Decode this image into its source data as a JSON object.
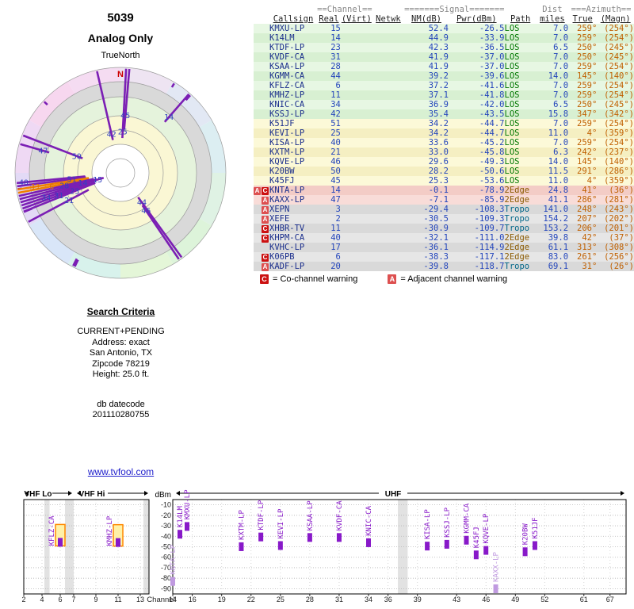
{
  "header": {
    "title": "5039",
    "subtitle": "Analog Only",
    "north_label": "TrueNorth",
    "north_marker": "N"
  },
  "table": {
    "group_headers": {
      "channel": "==Channel==",
      "signal": "=======Signal=======",
      "dist": "Dist",
      "azimuth": "===Azimuth=="
    },
    "columns": {
      "callsign": "Callsign",
      "real": "Real",
      "virt": "(Virt)",
      "netwk": "Netwk",
      "nm": "NM(dB)",
      "pwr": "Pwr(dBm)",
      "path": "Path",
      "miles": "miles",
      "az_true": "True",
      "az_magn": "(Magn)"
    }
  },
  "legend": {
    "co_symbol": "C",
    "co_text": "= Co-channel warning",
    "adj_symbol": "A",
    "adj_text": "= Adjacent channel warning"
  },
  "search": {
    "heading": "Search Criteria",
    "lines": [
      "CURRENT+PENDING",
      "Address: exact",
      "San Antonio, TX",
      "Zipcode 78219",
      "Height: 25.0 ft."
    ],
    "datecode_label": "db datecode",
    "datecode_value": "201110280755"
  },
  "link_text": "www.tvfool.com",
  "colors": {
    "bar_purple": "#8819c9",
    "bar_pending": "#c09ae0",
    "highlight_orange": "#ff8800",
    "warn_red": "#cc1111"
  },
  "chart_data": {
    "type": "bar",
    "y_axis_label": "dBm",
    "bottom_axis_label": "Channel",
    "y_ticks": [
      -10,
      -20,
      -30,
      -40,
      -50,
      -60,
      -70,
      -80,
      -90
    ],
    "vhf_channel_ticks": [
      2,
      4,
      6,
      7,
      9,
      11,
      13
    ],
    "uhf_channel_ticks": [
      14,
      16,
      19,
      22,
      25,
      28,
      31,
      34,
      36,
      39,
      43,
      46,
      49,
      52,
      61,
      67
    ],
    "band_labels": [
      "VHF Lo",
      "VHF Hi",
      "UHF"
    ],
    "stations": [
      {
        "callsign": "KMXU-LP",
        "real": 15,
        "nm_db": 52.4,
        "pwr_dbm": -26.5,
        "path": "LOS",
        "miles": 7.0,
        "az_true": 259,
        "az_magn": 254,
        "band": "green"
      },
      {
        "callsign": "K14LM",
        "real": 14,
        "nm_db": 44.9,
        "pwr_dbm": -33.9,
        "path": "LOS",
        "miles": 7.0,
        "az_true": 259,
        "az_magn": 254,
        "band": "green"
      },
      {
        "callsign": "KTDF-LP",
        "real": 23,
        "nm_db": 42.3,
        "pwr_dbm": -36.5,
        "path": "LOS",
        "miles": 6.5,
        "az_true": 250,
        "az_magn": 245,
        "band": "green"
      },
      {
        "callsign": "KVDF-CA",
        "real": 31,
        "nm_db": 41.9,
        "pwr_dbm": -37.0,
        "path": "LOS",
        "miles": 7.0,
        "az_true": 250,
        "az_magn": 245,
        "band": "green"
      },
      {
        "callsign": "KSAA-LP",
        "real": 28,
        "nm_db": 41.9,
        "pwr_dbm": -37.0,
        "path": "LOS",
        "miles": 7.0,
        "az_true": 259,
        "az_magn": 254,
        "band": "green"
      },
      {
        "callsign": "KGMM-CA",
        "real": 44,
        "nm_db": 39.2,
        "pwr_dbm": -39.6,
        "path": "LOS",
        "miles": 14.0,
        "az_true": 145,
        "az_magn": 140,
        "band": "green"
      },
      {
        "callsign": "KFLZ-CA",
        "real": 6,
        "nm_db": 37.2,
        "pwr_dbm": -41.6,
        "path": "LOS",
        "miles": 7.0,
        "az_true": 259,
        "az_magn": 254,
        "band": "green",
        "highlight_box": true
      },
      {
        "callsign": "KMHZ-LP",
        "real": 11,
        "nm_db": 37.1,
        "pwr_dbm": -41.8,
        "path": "LOS",
        "miles": 7.0,
        "az_true": 259,
        "az_magn": 254,
        "band": "green",
        "highlight_box": true
      },
      {
        "callsign": "KNIC-CA",
        "real": 34,
        "nm_db": 36.9,
        "pwr_dbm": -42.0,
        "path": "LOS",
        "miles": 6.5,
        "az_true": 250,
        "az_magn": 245,
        "band": "green"
      },
      {
        "callsign": "KSSJ-LP",
        "real": 42,
        "nm_db": 35.4,
        "pwr_dbm": -43.5,
        "path": "LOS",
        "miles": 15.8,
        "az_true": 347,
        "az_magn": 342,
        "band": "green"
      },
      {
        "callsign": "K51JF",
        "real": 51,
        "nm_db": 34.2,
        "pwr_dbm": -44.7,
        "path": "LOS",
        "miles": 7.0,
        "az_true": 259,
        "az_magn": 254,
        "band": "yellow"
      },
      {
        "callsign": "KEVI-LP",
        "real": 25,
        "nm_db": 34.2,
        "pwr_dbm": -44.7,
        "path": "LOS",
        "miles": 11.0,
        "az_true": 4,
        "az_magn": 359,
        "band": "yellow"
      },
      {
        "callsign": "KISA-LP",
        "real": 40,
        "nm_db": 33.6,
        "pwr_dbm": -45.2,
        "path": "LOS",
        "miles": 7.0,
        "az_true": 259,
        "az_magn": 254,
        "band": "yellow"
      },
      {
        "callsign": "KXTM-LP",
        "real": 21,
        "nm_db": 33.0,
        "pwr_dbm": -45.8,
        "path": "LOS",
        "miles": 6.3,
        "az_true": 242,
        "az_magn": 237,
        "band": "yellow"
      },
      {
        "callsign": "KQVE-LP",
        "real": 46,
        "nm_db": 29.6,
        "pwr_dbm": -49.3,
        "path": "LOS",
        "miles": 14.0,
        "az_true": 145,
        "az_magn": 140,
        "band": "yellow"
      },
      {
        "callsign": "K20BW",
        "real": 50,
        "nm_db": 28.2,
        "pwr_dbm": -50.6,
        "path": "LOS",
        "miles": 11.5,
        "az_true": 291,
        "az_magn": 286,
        "band": "yellow"
      },
      {
        "callsign": "K45FJ",
        "real": 45,
        "nm_db": 25.3,
        "pwr_dbm": -53.6,
        "path": "LOS",
        "miles": 11.0,
        "az_true": 4,
        "az_magn": 359,
        "band": "yellow"
      },
      {
        "callsign": "KNTA-LP",
        "real": 14,
        "nm_db": -0.1,
        "pwr_dbm": -78.9,
        "path": "2Edge",
        "miles": 24.8,
        "az_true": 41,
        "az_magn": 36,
        "band": "red",
        "warnings": [
          "A",
          "C"
        ],
        "light_bar": true
      },
      {
        "callsign": "KAXX-LP",
        "real": 47,
        "nm_db": -7.1,
        "pwr_dbm": -85.9,
        "path": "2Edge",
        "miles": 41.1,
        "az_true": 286,
        "az_magn": 281,
        "band": "red",
        "warnings": [
          "A"
        ],
        "light_bar": true
      },
      {
        "callsign": "XEPN",
        "real": 3,
        "nm_db": -29.4,
        "pwr_dbm": -108.3,
        "path": "Tropo",
        "miles": 141.0,
        "az_true": 248,
        "az_magn": 243,
        "band": "gray",
        "warnings": [
          "A"
        ]
      },
      {
        "callsign": "XEFE",
        "real": 2,
        "nm_db": -30.5,
        "pwr_dbm": -109.3,
        "path": "Tropo",
        "miles": 154.2,
        "az_true": 207,
        "az_magn": 202,
        "band": "gray",
        "warnings": [
          "A"
        ]
      },
      {
        "callsign": "XHBR-TV",
        "real": 11,
        "nm_db": -30.9,
        "pwr_dbm": -109.7,
        "path": "Tropo",
        "miles": 153.2,
        "az_true": 206,
        "az_magn": 201,
        "band": "gray",
        "warnings": [
          "C"
        ]
      },
      {
        "callsign": "KHPM-CA",
        "real": 40,
        "nm_db": -32.1,
        "pwr_dbm": -111.0,
        "path": "2Edge",
        "miles": 39.8,
        "az_true": 42,
        "az_magn": 37,
        "band": "gray",
        "warnings": [
          "C"
        ]
      },
      {
        "callsign": "KVHC-LP",
        "real": 17,
        "nm_db": -36.1,
        "pwr_dbm": -114.9,
        "path": "2Edge",
        "miles": 61.1,
        "az_true": 313,
        "az_magn": 308,
        "band": "gray"
      },
      {
        "callsign": "K06PB",
        "real": 6,
        "nm_db": -38.3,
        "pwr_dbm": -117.1,
        "path": "2Edge",
        "miles": 83.0,
        "az_true": 261,
        "az_magn": 256,
        "band": "gray",
        "warnings": [
          "C"
        ]
      },
      {
        "callsign": "KADF-LP",
        "real": 20,
        "nm_db": -39.8,
        "pwr_dbm": -118.7,
        "path": "Tropo",
        "miles": 69.1,
        "az_true": 31,
        "az_magn": 26,
        "band": "gray",
        "warnings": [
          "A"
        ]
      }
    ]
  }
}
